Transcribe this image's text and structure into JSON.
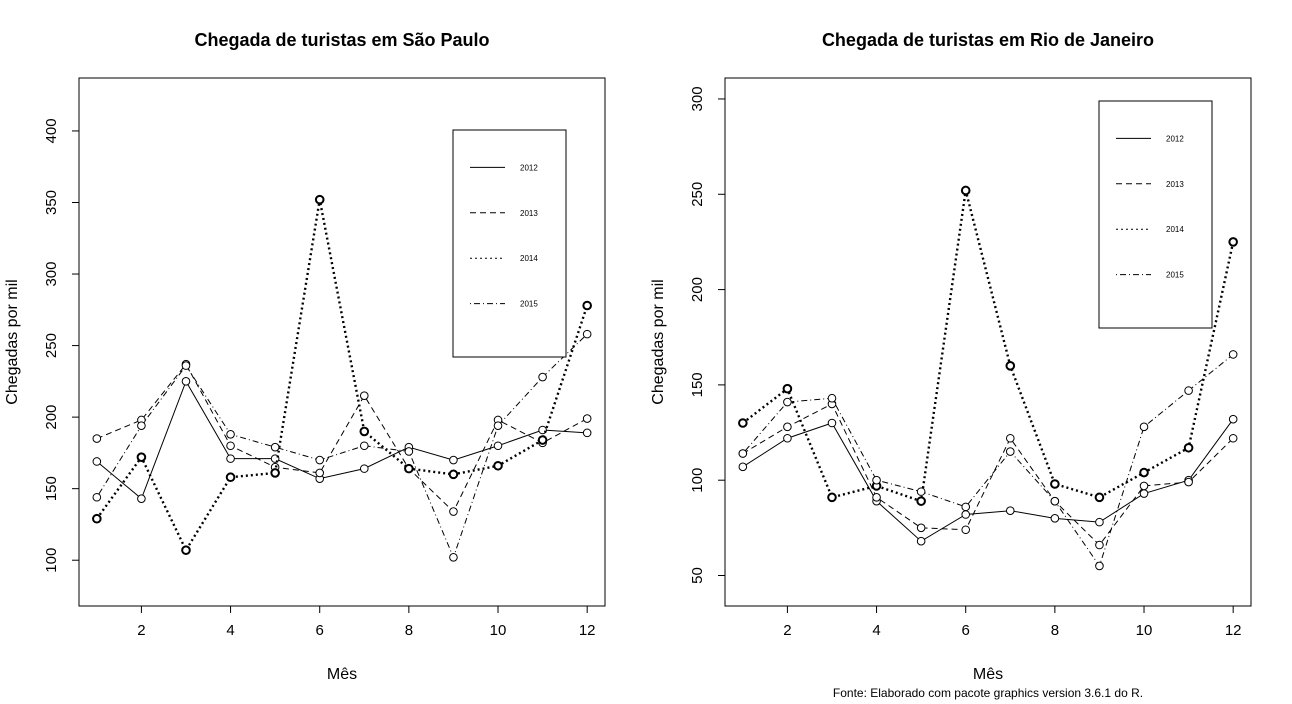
{
  "chart_data": [
    {
      "type": "line",
      "title": "Chegada de turistas em São Paulo",
      "xlabel": "Mês",
      "ylabel": "Chegadas por mil",
      "xlim": [
        0.6,
        12.4
      ],
      "ylim": [
        68,
        437
      ],
      "xticks": [
        2,
        4,
        6,
        8,
        10,
        12
      ],
      "yticks": [
        100,
        150,
        200,
        250,
        300,
        350,
        400
      ],
      "legend_position": "top-right",
      "x": [
        1,
        2,
        3,
        4,
        5,
        6,
        7,
        8,
        9,
        10,
        11,
        12
      ],
      "series": [
        {
          "name": "2012",
          "dash": "solid",
          "width": 1,
          "values": [
            169,
            143,
            225,
            171,
            171,
            157,
            164,
            179,
            170,
            180,
            191,
            189
          ]
        },
        {
          "name": "2013",
          "dash": "dashed",
          "width": 1,
          "values": [
            185,
            198,
            237,
            180,
            165,
            161,
            215,
            164,
            134,
            198,
            182,
            199
          ]
        },
        {
          "name": "2014",
          "dash": "dotted",
          "width": 2.4,
          "values": [
            129,
            172,
            107,
            158,
            161,
            352,
            190,
            164,
            160,
            166,
            184,
            278
          ]
        },
        {
          "name": "2015",
          "dash": "dotdash",
          "width": 1,
          "values": [
            144,
            194,
            236,
            188,
            179,
            170,
            180,
            176,
            102,
            194,
            228,
            258
          ]
        }
      ]
    },
    {
      "type": "line",
      "title": "Chegada de turistas em Rio de Janeiro",
      "xlabel": "Mês",
      "ylabel": "Chegadas por mil",
      "xlim": [
        0.6,
        12.4
      ],
      "ylim": [
        34,
        311
      ],
      "xticks": [
        2,
        4,
        6,
        8,
        10,
        12
      ],
      "yticks": [
        50,
        100,
        150,
        200,
        250,
        300
      ],
      "legend_position": "top-right",
      "x": [
        1,
        2,
        3,
        4,
        5,
        6,
        7,
        8,
        9,
        10,
        11,
        12
      ],
      "series": [
        {
          "name": "2012",
          "dash": "solid",
          "width": 1,
          "values": [
            107,
            122,
            130,
            89,
            68,
            82,
            84,
            80,
            78,
            93,
            100,
            132
          ]
        },
        {
          "name": "2013",
          "dash": "dashed",
          "width": 1,
          "values": [
            114,
            128,
            140,
            91,
            75,
            74,
            122,
            89,
            66,
            97,
            99,
            122
          ]
        },
        {
          "name": "2014",
          "dash": "dotted",
          "width": 2.4,
          "values": [
            130,
            148,
            91,
            97,
            89,
            252,
            160,
            98,
            91,
            104,
            117,
            225
          ]
        },
        {
          "name": "2015",
          "dash": "dotdash",
          "width": 1,
          "values": [
            114,
            141,
            143,
            100,
            94,
            86,
            115,
            89,
            55,
            128,
            147,
            166
          ]
        }
      ]
    }
  ],
  "source_note": "Fonte: Elaborado com pacote graphics version 3.6.1 do R."
}
